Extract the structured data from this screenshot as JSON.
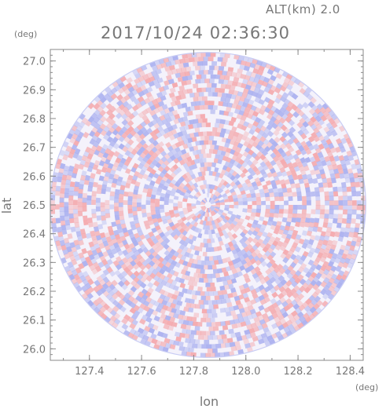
{
  "header": {
    "altitude_label": "ALT(km) 2.0",
    "datetime": "2017/10/24 02:36:30"
  },
  "chart_data": {
    "type": "heatmap",
    "description_kind": "radar-ppi",
    "xlabel": "lon",
    "ylabel": "lat",
    "x_unit": "(deg)",
    "y_unit": "(deg)",
    "xlim": [
      127.25,
      128.45
    ],
    "ylim": [
      25.96,
      27.04
    ],
    "x_ticks": [
      "127.4",
      "127.6",
      "127.8",
      "128.0",
      "128.2",
      "128.4"
    ],
    "x_tick_values": [
      127.4,
      127.6,
      127.8,
      128.0,
      128.2,
      128.4
    ],
    "y_ticks": [
      "26.0",
      "26.1",
      "26.2",
      "26.3",
      "26.4",
      "26.5",
      "26.6",
      "26.7",
      "26.8",
      "26.9",
      "27.0"
    ],
    "y_tick_values": [
      26.0,
      26.1,
      26.2,
      26.3,
      26.4,
      26.5,
      26.6,
      26.7,
      26.8,
      26.9,
      27.0
    ],
    "center": {
      "lon": 127.855,
      "lat": 26.5
    },
    "radius_lon_deg": 0.605,
    "radius_lat_deg": 0.53,
    "colors": {
      "positive": "#f4a8ac",
      "negative": "#a9afef",
      "neutral": "#f4f2fb",
      "axis": "#888888",
      "text": "#777777"
    }
  }
}
